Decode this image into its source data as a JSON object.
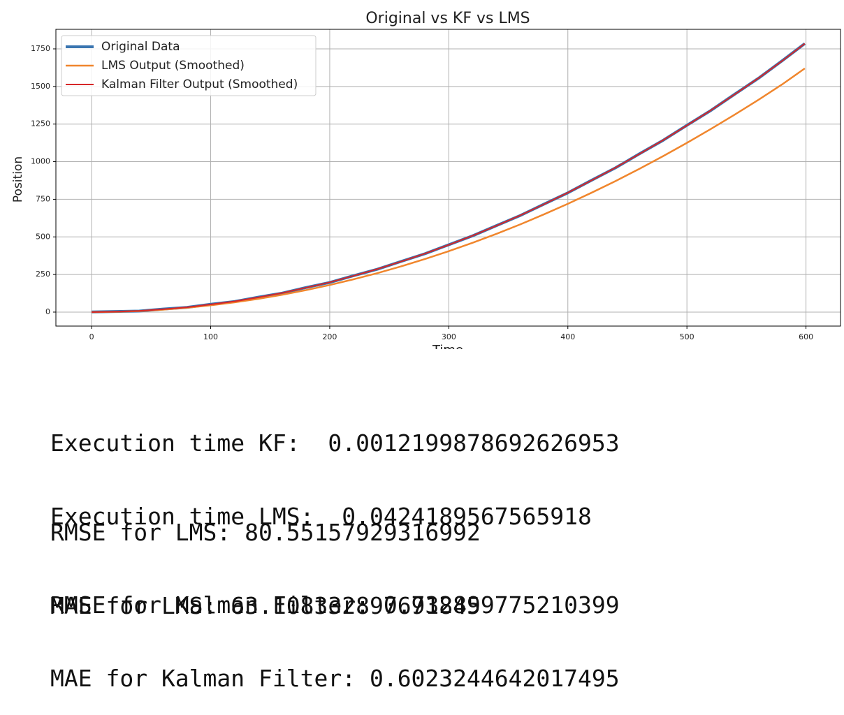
{
  "chart_data": {
    "type": "line",
    "title": "Original vs KF vs LMS",
    "xlabel": "Time",
    "ylabel": "Position",
    "x": [
      0,
      20,
      40,
      60,
      80,
      100,
      120,
      140,
      160,
      180,
      200,
      220,
      240,
      260,
      280,
      300,
      320,
      340,
      360,
      380,
      400,
      420,
      440,
      460,
      480,
      500,
      520,
      540,
      560,
      580,
      599
    ],
    "series": [
      {
        "name": "Original Data",
        "color": "#3a75b0",
        "values": [
          1,
          4,
          7,
          20,
          31,
          52,
          70,
          99,
          126,
          163,
          197,
          242,
          285,
          337,
          388,
          448,
          507,
          575,
          642,
          718,
          793,
          877,
          959,
          1052,
          1142,
          1242,
          1340,
          1448,
          1554,
          1671,
          1785
        ]
      },
      {
        "name": "LMS Output (Smoothed)",
        "color": "#f0862d",
        "values": [
          0,
          2,
          7,
          16,
          29,
          45,
          65,
          88,
          115,
          146,
          180,
          218,
          259,
          304,
          353,
          405,
          461,
          520,
          583,
          650,
          720,
          794,
          871,
          952,
          1037,
          1125,
          1217,
          1312,
          1411,
          1514,
          1620
        ]
      },
      {
        "name": "Kalman Filter Output (Smoothed)",
        "color": "#d62728",
        "values": [
          0,
          3,
          8,
          19,
          32,
          51,
          71,
          98,
          127,
          162,
          198,
          241,
          286,
          336,
          389,
          447,
          508,
          574,
          643,
          717,
          794,
          876,
          960,
          1051,
          1143,
          1241,
          1341,
          1447,
          1555,
          1670,
          1785
        ]
      }
    ],
    "xlim": [
      -30,
      629
    ],
    "xticks": [
      0,
      100,
      200,
      300,
      400,
      500,
      600
    ],
    "ylim": [
      -93,
      1880
    ],
    "yticks": [
      0,
      250,
      500,
      750,
      1000,
      1250,
      1500,
      1750
    ],
    "grid": true,
    "legend": "upper left"
  },
  "output": {
    "timing": [
      "Execution time KF:  0.0012199878692626953",
      "Execution time LMS:  0.0424189567565918"
    ],
    "lms": [
      "RMSE for LMS: 80.55157929316992",
      "MAE for LMS: 63.108332897691845"
    ],
    "kf": [
      "RMSE for Kalman Filter: 0.732899775210399",
      "MAE for Kalman Filter: 0.6023244642017495"
    ]
  }
}
